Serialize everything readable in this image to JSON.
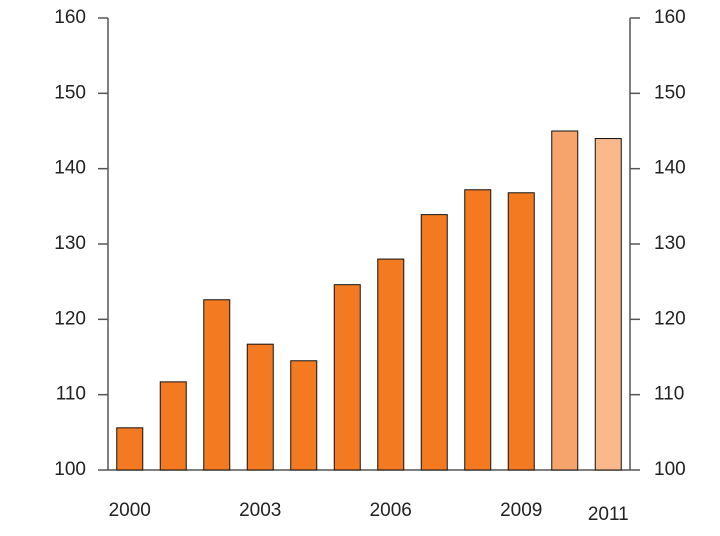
{
  "chart_data": {
    "type": "bar",
    "categories": [
      "2000",
      null,
      null,
      "2003",
      null,
      null,
      "2006",
      null,
      null,
      "2009",
      null,
      "2011"
    ],
    "values": [
      105.6,
      111.7,
      122.6,
      116.7,
      114.5,
      124.6,
      128,
      133.9,
      137.2,
      136.8,
      145,
      144
    ],
    "colors": [
      "#f37a20",
      "#f37a20",
      "#f37a20",
      "#f37a20",
      "#f37a20",
      "#f37a20",
      "#f37a20",
      "#f37a20",
      "#f37a20",
      "#f37a20",
      "#f6a46c",
      "#f9b98a"
    ],
    "ylim": [
      100,
      160
    ],
    "yticks": [
      100,
      110,
      120,
      130,
      140,
      150,
      160
    ],
    "y2lim": [
      100,
      160
    ],
    "y2ticks": [
      100,
      110,
      120,
      130,
      140,
      150,
      160
    ]
  }
}
